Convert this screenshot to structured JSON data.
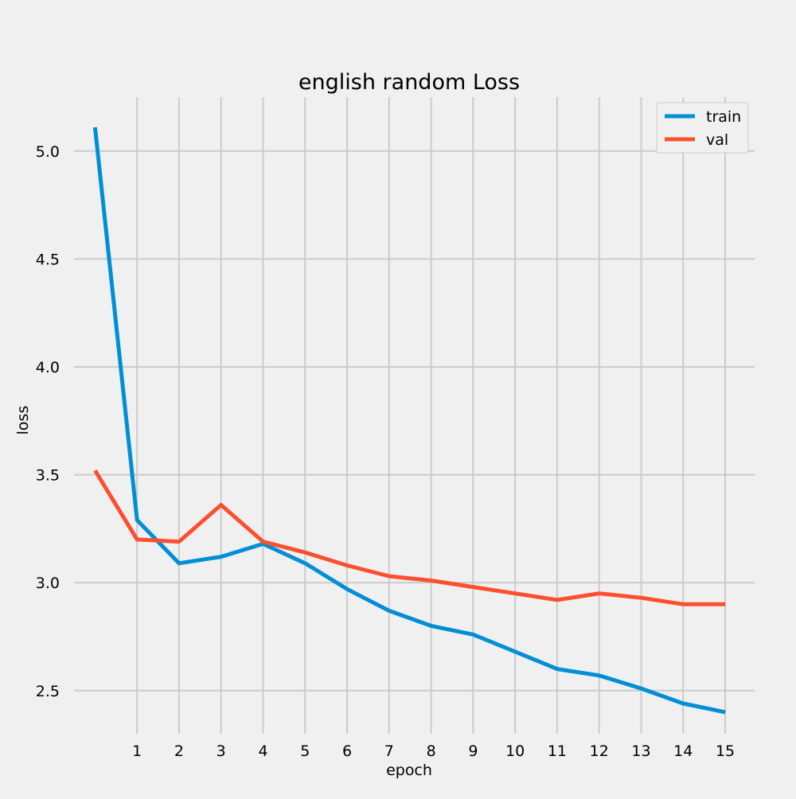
{
  "chart_data": {
    "type": "line",
    "title": "english random Loss",
    "xlabel": "epoch",
    "ylabel": "loss",
    "x": [
      0,
      1,
      2,
      3,
      4,
      5,
      6,
      7,
      8,
      9,
      10,
      11,
      12,
      13,
      14,
      15
    ],
    "xticks": [
      1,
      2,
      3,
      4,
      5,
      6,
      7,
      8,
      9,
      10,
      11,
      12,
      13,
      14,
      15
    ],
    "xtick_labels": [
      "1",
      "2",
      "3",
      "4",
      "5",
      "6",
      "7",
      "8",
      "9",
      "10",
      "11",
      "12",
      "13",
      "14",
      "15"
    ],
    "yticks": [
      2.5,
      3.0,
      3.5,
      4.0,
      4.5,
      5.0
    ],
    "ytick_labels": [
      "2.5",
      "3.0",
      "3.5",
      "4.0",
      "4.5",
      "5.0"
    ],
    "xlim": [
      -0.5,
      15.7
    ],
    "ylim": [
      2.3,
      5.25
    ],
    "grid": true,
    "legend_position": "top-right",
    "series": [
      {
        "name": "train",
        "color": "#008fd5",
        "values": [
          5.11,
          3.29,
          3.09,
          3.12,
          3.18,
          3.09,
          2.97,
          2.87,
          2.8,
          2.76,
          2.68,
          2.6,
          2.57,
          2.51,
          2.44,
          2.4
        ]
      },
      {
        "name": "val",
        "color": "#fc4f30",
        "values": [
          3.52,
          3.2,
          3.19,
          3.36,
          3.19,
          3.14,
          3.08,
          3.03,
          3.01,
          2.98,
          2.95,
          2.92,
          2.95,
          2.93,
          2.9,
          2.9
        ]
      }
    ]
  }
}
